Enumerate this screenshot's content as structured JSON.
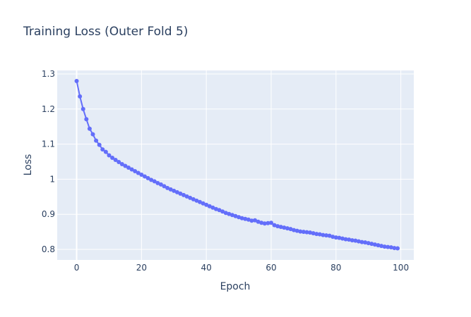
{
  "colors": {
    "plot_background": "#e5ecf6",
    "grid": "#ffffff",
    "series_color": "#636efa",
    "text": "#2a3f5f"
  },
  "chart_data": {
    "type": "line",
    "title": "Training Loss (Outer Fold 5)",
    "xlabel": "Epoch",
    "ylabel": "Loss",
    "xlim": [
      -6,
      104
    ],
    "ylim": [
      0.77,
      1.31
    ],
    "xticks": [
      0,
      20,
      40,
      60,
      80,
      100
    ],
    "xtick_labels": [
      "0",
      "20",
      "40",
      "60",
      "80",
      "100"
    ],
    "yticks": [
      0.8,
      0.9,
      1.0,
      1.1,
      1.2,
      1.3
    ],
    "ytick_labels": [
      "0.8",
      "0.9",
      "1",
      "1.1",
      "1.2",
      "1.3"
    ],
    "grid": true,
    "markers": true,
    "series": [
      {
        "x": [
          0,
          1,
          2,
          3,
          4,
          5,
          6,
          7,
          8,
          9,
          10,
          11,
          12,
          13,
          14,
          15,
          16,
          17,
          18,
          19,
          20,
          21,
          22,
          23,
          24,
          25,
          26,
          27,
          28,
          29,
          30,
          31,
          32,
          33,
          34,
          35,
          36,
          37,
          38,
          39,
          40,
          41,
          42,
          43,
          44,
          45,
          46,
          47,
          48,
          49,
          50,
          51,
          52,
          53,
          54,
          55,
          56,
          57,
          58,
          59,
          60,
          61,
          62,
          63,
          64,
          65,
          66,
          67,
          68,
          69,
          70,
          71,
          72,
          73,
          74,
          75,
          76,
          77,
          78,
          79,
          80,
          81,
          82,
          83,
          84,
          85,
          86,
          87,
          88,
          89,
          90,
          91,
          92,
          93,
          94,
          95,
          96,
          97,
          98,
          99
        ],
        "y": [
          1.28,
          1.236,
          1.2,
          1.171,
          1.144,
          1.128,
          1.11,
          1.098,
          1.085,
          1.078,
          1.068,
          1.061,
          1.055,
          1.049,
          1.043,
          1.038,
          1.033,
          1.028,
          1.023,
          1.018,
          1.013,
          1.008,
          1.003,
          0.998,
          0.994,
          0.989,
          0.985,
          0.98,
          0.975,
          0.971,
          0.967,
          0.963,
          0.959,
          0.955,
          0.951,
          0.947,
          0.943,
          0.939,
          0.935,
          0.931,
          0.927,
          0.923,
          0.919,
          0.915,
          0.912,
          0.908,
          0.904,
          0.901,
          0.898,
          0.895,
          0.892,
          0.889,
          0.887,
          0.885,
          0.882,
          0.883,
          0.879,
          0.876,
          0.874,
          0.875,
          0.876,
          0.869,
          0.866,
          0.864,
          0.862,
          0.86,
          0.858,
          0.855,
          0.853,
          0.851,
          0.85,
          0.849,
          0.848,
          0.846,
          0.844,
          0.843,
          0.841,
          0.84,
          0.839,
          0.836,
          0.834,
          0.833,
          0.831,
          0.829,
          0.828,
          0.826,
          0.825,
          0.823,
          0.821,
          0.82,
          0.818,
          0.816,
          0.814,
          0.812,
          0.81,
          0.808,
          0.807,
          0.806,
          0.804,
          0.803
        ]
      }
    ]
  }
}
